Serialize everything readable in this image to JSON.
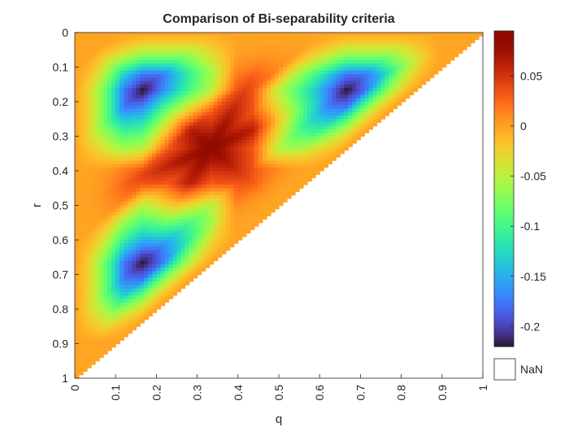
{
  "chart_data": {
    "type": "heatmap",
    "title": "Comparison of Bi-separability criteria",
    "xlabel": "q",
    "ylabel": "r",
    "xlim": [
      0,
      1
    ],
    "ylim": [
      1,
      0
    ],
    "x_ticks": [
      "0",
      "0.1",
      "0.2",
      "0.3",
      "0.4",
      "0.5",
      "0.6",
      "0.7",
      "0.8",
      "0.9",
      "1"
    ],
    "y_ticks": [
      "0",
      "0.1",
      "0.2",
      "0.3",
      "0.4",
      "0.5",
      "0.6",
      "0.7",
      "0.8",
      "0.9",
      "1"
    ],
    "colormap": "turbo",
    "clim": [
      -0.22,
      0.095
    ],
    "colorbar_ticks": [
      "0.05",
      "0",
      "-0.05",
      "-0.1",
      "-0.15",
      "-0.2"
    ],
    "colorbar_tick_values": [
      0.05,
      0,
      -0.05,
      -0.1,
      -0.15,
      -0.2
    ],
    "nan_label": "NaN",
    "nan_color": "#ffffff",
    "domain": "q + r <= 1",
    "grid_steps": 100,
    "extrema": [
      {
        "kind": "minimum",
        "q": 0.167,
        "r": 0.167,
        "value": -0.22
      },
      {
        "kind": "minimum",
        "q": 0.667,
        "r": 0.167,
        "value": -0.22
      },
      {
        "kind": "minimum",
        "q": 0.167,
        "r": 0.667,
        "value": -0.22
      },
      {
        "kind": "maximum",
        "q": 0.333,
        "r": 0.333,
        "value": 0.095
      }
    ],
    "boundary_value": 0.0
  }
}
